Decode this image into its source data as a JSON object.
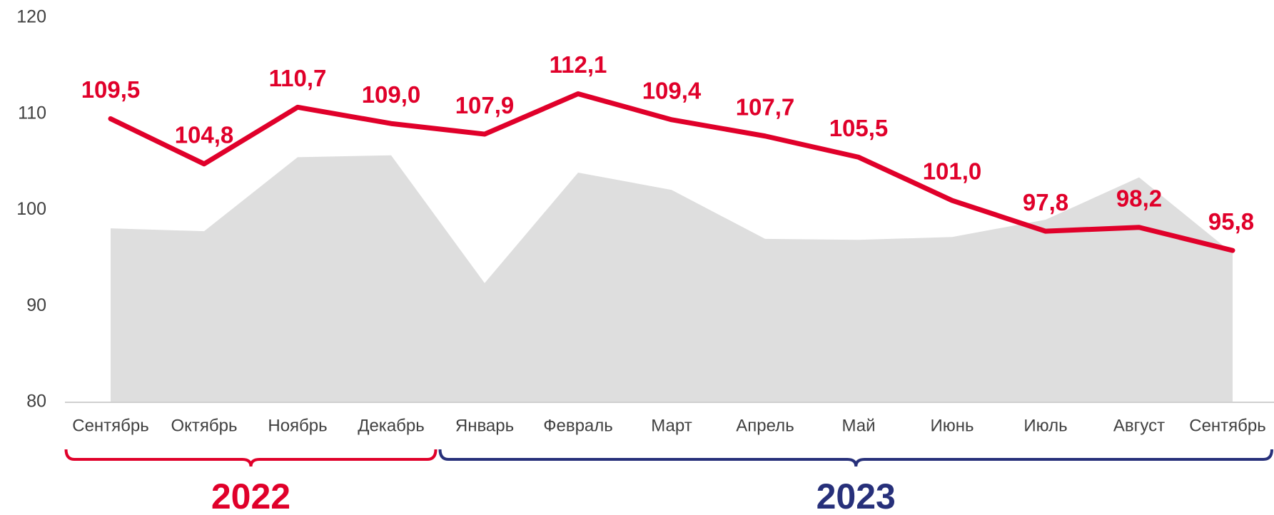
{
  "chart_data": {
    "type": "line",
    "categories": [
      "Сентябрь",
      "Октябрь",
      "Ноябрь",
      "Декабрь",
      "Январь",
      "Февраль",
      "Март",
      "Апрель",
      "Май",
      "Июнь",
      "Июль",
      "Август",
      "Сентябрь"
    ],
    "series": [
      {
        "type": "area",
        "color": "#dedede",
        "values": [
          98.1,
          97.8,
          105.5,
          105.7,
          92.4,
          103.9,
          102.1,
          97.0,
          96.9,
          97.2,
          99.0,
          103.4,
          95.5
        ]
      },
      {
        "type": "line",
        "color": "#e0002a",
        "values": [
          109.5,
          104.8,
          110.7,
          109.0,
          107.9,
          112.1,
          109.4,
          107.7,
          105.5,
          101.0,
          97.8,
          98.2,
          95.8
        ],
        "value_labels": [
          "109,5",
          "104,8",
          "110,7",
          "109,0",
          "107,9",
          "112,1",
          "109,4",
          "107,7",
          "105,5",
          "101,0",
          "97,8",
          "98,2",
          "95,8"
        ]
      }
    ],
    "ylim": [
      80,
      120
    ],
    "yticks": [
      80,
      90,
      100,
      110,
      120
    ],
    "grid": false,
    "groups": [
      {
        "label": "2022",
        "color": "#e0002a",
        "from": 0,
        "to": 3
      },
      {
        "label": "2023",
        "color": "#27307a",
        "from": 4,
        "to": 12
      }
    ]
  }
}
